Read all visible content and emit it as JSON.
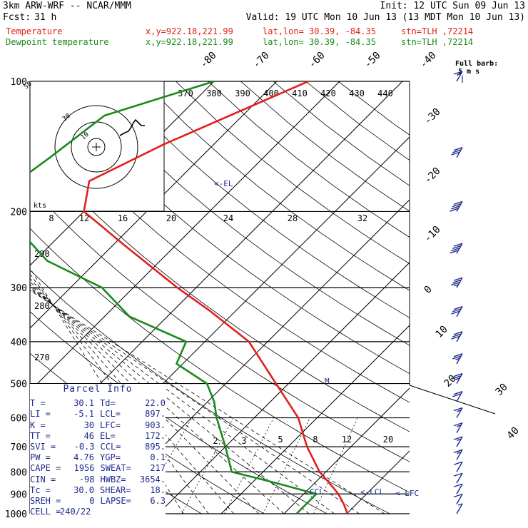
{
  "header": {
    "model": "3km ARW-WRF -- NCAR/MMM",
    "init": "Init: 12 UTC Sun 09 Jun 13",
    "fcst_label": "Fcst:",
    "fcst_value": "31 h",
    "valid": "Valid: 19 UTC Mon 10 Jun 13 (13 MDT Mon 10 Jun 13)"
  },
  "legend": [
    {
      "name": "Temperature",
      "xy": "x,y=922.18,221.99",
      "latlon": "lat,lon= 30.39, -84.35",
      "stn": "stn=TLH ,72214",
      "color": "#e0201b"
    },
    {
      "name": "Dewpoint temperature",
      "xy": "x,y=922.18,221.99",
      "latlon": "lat,lon= 30.39, -84.35",
      "stn": "stn=TLH ,72214",
      "color": "#1a8a1a"
    }
  ],
  "barb_label": {
    "line1": "Full barb:",
    "line2": "5 m s"
  },
  "hodograph": {
    "kts_label": "kts",
    "ring_labels": [
      "50",
      "30",
      "10"
    ]
  },
  "parcel_info": {
    "title": "Parcel Info",
    "rows": [
      {
        "l1": "T",
        "v1": "30.1",
        "l2": "Td",
        "v2": "22.0"
      },
      {
        "l1": "LI",
        "v1": "-5.1",
        "l2": "LCL",
        "v2": "897."
      },
      {
        "l1": "K",
        "v1": "30",
        "l2": "LFC",
        "v2": "903."
      },
      {
        "l1": "TT",
        "v1": "46",
        "l2": "EL",
        "v2": "172."
      },
      {
        "l1": "SVI",
        "v1": "-0.3",
        "l2": "CCL",
        "v2": "895."
      },
      {
        "l1": "PW",
        "v1": "4.76",
        "l2": "YGP",
        "v2": "0.1"
      },
      {
        "l1": "CAPE",
        "v1": "1956",
        "l2": "SWEAT",
        "v2": "217"
      },
      {
        "l1": "CIN",
        "v1": "-98",
        "l2": "HWBZ",
        "v2": "3654."
      },
      {
        "l1": "Tc",
        "v1": "30.0",
        "l2": "SHEAR",
        "v2": "18."
      },
      {
        "l1": "SREH",
        "v1": "0",
        "l2": "LAPSE",
        "v2": "6.3"
      },
      {
        "l1": "CELL",
        "v1": "240/22",
        "l2": "",
        "v2": ""
      }
    ]
  },
  "level_markers": {
    "el": "<-EL",
    "ccl": "CCL",
    "lcl": "<-LCL",
    "lfc": "<-LFC",
    "m": "M"
  },
  "chart_data": {
    "type": "line",
    "pressure_levels": [
      100,
      200,
      300,
      400,
      500,
      600,
      700,
      800,
      900,
      1000
    ],
    "temp_axis_labels": [
      "-80",
      "-70",
      "-60",
      "-50",
      "-40",
      "-30",
      "-20",
      "-10",
      "0",
      "10",
      "20",
      "30",
      "40"
    ],
    "theta_labels": [
      "370",
      "380",
      "390",
      "400",
      "410",
      "420",
      "430",
      "440"
    ],
    "mixing_ratio_labels": [
      "2",
      "3",
      "5",
      "8",
      "12",
      "20"
    ],
    "low_theta_labels": [
      "290",
      "280",
      "270"
    ],
    "wetbulb_labels": [
      "8",
      "12",
      "16",
      "20",
      "24",
      "28",
      "32"
    ],
    "series": [
      {
        "name": "Temperature",
        "color": "#e0201b",
        "points": [
          [
            100,
            -45
          ],
          [
            140,
            -58
          ],
          [
            170,
            -64
          ],
          [
            200,
            -60
          ],
          [
            240,
            -48
          ],
          [
            300,
            -33
          ],
          [
            340,
            -24
          ],
          [
            400,
            -13
          ],
          [
            500,
            -2
          ],
          [
            600,
            7
          ],
          [
            700,
            13
          ],
          [
            800,
            19
          ],
          [
            875,
            24
          ],
          [
            900,
            25.5
          ],
          [
            950,
            28
          ],
          [
            1000,
            30.1
          ]
        ]
      },
      {
        "name": "Dewpoint temperature",
        "color": "#1a8a1a",
        "points": [
          [
            100,
            -60
          ],
          [
            120,
            -72
          ],
          [
            150,
            -74
          ],
          [
            180,
            -76
          ],
          [
            200,
            -73
          ],
          [
            260,
            -58
          ],
          [
            300,
            -45
          ],
          [
            350,
            -36
          ],
          [
            400,
            -23
          ],
          [
            450,
            -21
          ],
          [
            500,
            -13
          ],
          [
            550,
            -9
          ],
          [
            600,
            -6
          ],
          [
            700,
            0
          ],
          [
            800,
            5
          ],
          [
            850,
            14
          ],
          [
            900,
            22
          ],
          [
            950,
            22
          ],
          [
            1000,
            22
          ]
        ]
      }
    ],
    "winds": [
      {
        "p": 100,
        "kt": 18
      },
      {
        "p": 150,
        "kt": 30
      },
      {
        "p": 200,
        "kt": 40
      },
      {
        "p": 250,
        "kt": 40
      },
      {
        "p": 300,
        "kt": 35
      },
      {
        "p": 350,
        "kt": 30
      },
      {
        "p": 400,
        "kt": 30
      },
      {
        "p": 450,
        "kt": 25
      },
      {
        "p": 500,
        "kt": 25
      },
      {
        "p": 550,
        "kt": 20
      },
      {
        "p": 600,
        "kt": 15
      },
      {
        "p": 650,
        "kt": 15
      },
      {
        "p": 700,
        "kt": 15
      },
      {
        "p": 750,
        "kt": 15
      },
      {
        "p": 800,
        "kt": 10
      },
      {
        "p": 850,
        "kt": 10
      },
      {
        "p": 900,
        "kt": 10
      },
      {
        "p": 950,
        "kt": 10
      },
      {
        "p": 1000,
        "kt": 5
      }
    ]
  }
}
